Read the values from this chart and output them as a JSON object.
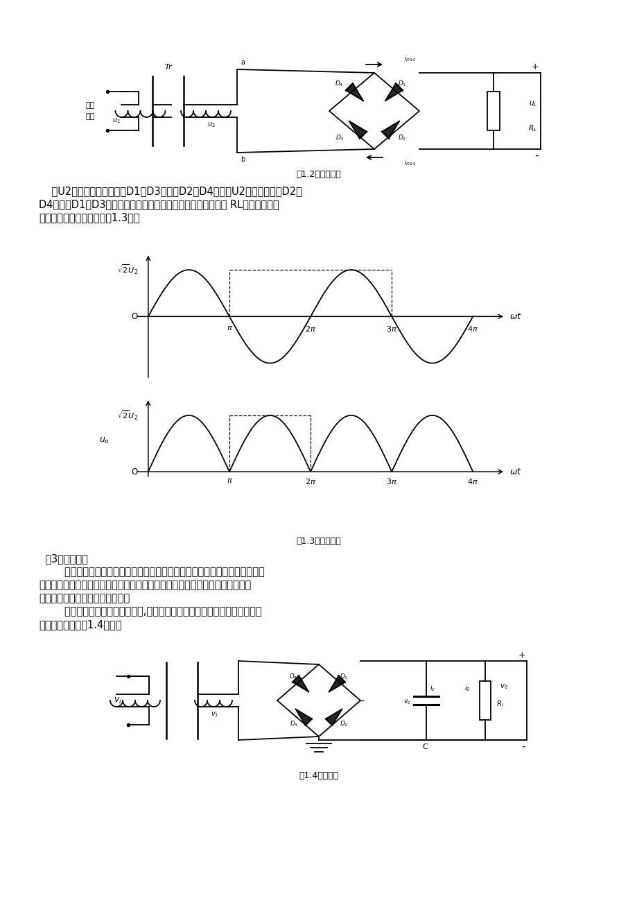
{
  "page_bg": "#ffffff",
  "fig_width": 9.2,
  "fig_height": 13.02,
  "caption_12": "图1.2整流电路图",
  "caption_13": "图1.3输出波形图",
  "caption_14": "图1.4滤波电路",
  "text_block1": [
    "    在U2的正半周内，二极管D1、D3导通，D2、D4截止；U2的负半周内，D2、",
    "D4导通，D1、D3截止。正负半周内部都有电流流过的负载电阻 RL，且方向是一",
    "致的。电路的输出波形如图1.3所示"
  ],
  "text_block2": [
    "  （3）滤波电路",
    "        整流电路输出电压虽然是单一方向的，但是含有较大的交流成分，不能适应",
    "大多数电子电路及设备的需要。因此，一搬在整流后，还需利用滤波电路将脉动",
    "的直流电压变为平滑的直流电压。",
    "        电容滤波是最常见的滤波电路,在整流电路的输出端并联一个电容即构成电",
    "容滤波电路，如图1.4所示。"
  ]
}
